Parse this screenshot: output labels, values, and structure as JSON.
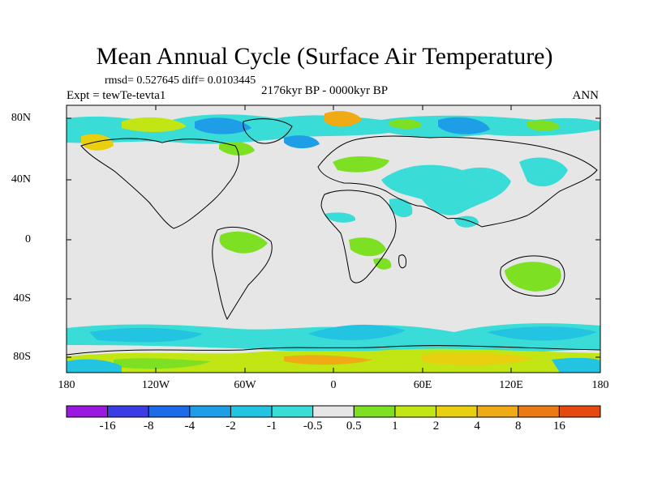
{
  "title": "Mean Annual Cycle (Surface Air Temperature)",
  "stats": "rmsd= 0.527645 diff= 0.0103445",
  "expt": "Expt = tewTe-tevta1",
  "period": "2176kyr BP - 0000kyr BP",
  "season": "ANN",
  "lat_labels": [
    "80N",
    "40N",
    "0",
    "40S",
    "80S"
  ],
  "lon_labels": [
    "180",
    "120W",
    "60W",
    "0",
    "60E",
    "120E",
    "180"
  ],
  "colorbar": {
    "colors": [
      "#9a18e0",
      "#3c3ce6",
      "#1c6ce8",
      "#1d9ee6",
      "#23c3e2",
      "#39dcd6",
      "#e6e6e6",
      "#7de022",
      "#c2e614",
      "#e8d010",
      "#f0aa14",
      "#ec7a12",
      "#e44a10"
    ],
    "labels": [
      "-16",
      "-8",
      "-4",
      "-2",
      "-1",
      "-0.5",
      "0.5",
      "1",
      "2",
      "4",
      "8",
      "16"
    ]
  },
  "colors": {
    "background": "#e6e6e6",
    "coast": "#000000"
  }
}
